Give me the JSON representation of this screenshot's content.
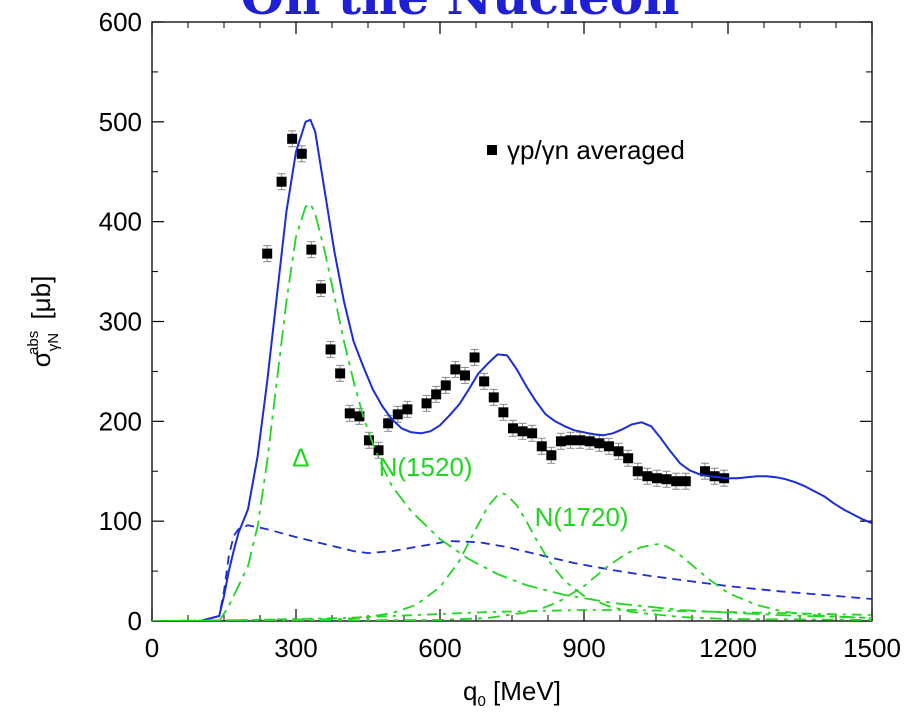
{
  "heading": {
    "text": "On the Nucleon",
    "color": "#1f1fd6"
  },
  "chart_data": {
    "type": "scatter",
    "title": "",
    "xlabel": "q",
    "xlabel_sub": "0",
    "xlabel_unit": "[MeV]",
    "ylabel": "σ",
    "ylabel_sub": "γN",
    "ylabel_sup": "abs",
    "ylabel_unit": "[μb]",
    "xlim": [
      0,
      1500
    ],
    "ylim": [
      0,
      600
    ],
    "xticks": [
      0,
      300,
      600,
      900,
      1200,
      1500
    ],
    "yticks": [
      0,
      100,
      200,
      300,
      400,
      500,
      600
    ],
    "grid": false,
    "legend": {
      "position": "top-right",
      "entries": [
        "γp/γn averaged"
      ]
    },
    "series": [
      {
        "name": "γp/γn averaged",
        "kind": "points",
        "color": "#000000",
        "error": 8,
        "x": [
          240,
          270,
          292,
          312,
          332,
          352,
          372,
          392,
          412,
          432,
          452,
          472,
          492,
          512,
          532,
          572,
          592,
          612,
          632,
          652,
          672,
          692,
          712,
          732,
          752,
          772,
          792,
          812,
          832,
          852,
          872,
          892,
          912,
          932,
          952,
          972,
          992,
          1012,
          1032,
          1052,
          1072,
          1092,
          1112,
          1152,
          1172,
          1192
        ],
        "y": [
          368,
          440,
          483,
          468,
          372,
          333,
          272,
          248,
          208,
          205,
          181,
          171,
          198,
          207,
          212,
          218,
          227,
          236,
          252,
          246,
          264,
          240,
          224,
          209,
          193,
          190,
          188,
          175,
          166,
          180,
          181,
          181,
          180,
          178,
          175,
          170,
          163,
          150,
          145,
          143,
          142,
          140,
          140,
          150,
          145,
          143
        ]
      },
      {
        "name": "",
        "kind": "solid",
        "color": "#1a2dd8",
        "x": [
          0,
          100,
          140,
          150,
          160,
          170,
          180,
          200,
          220,
          240,
          260,
          280,
          300,
          320,
          330,
          340,
          360,
          380,
          400,
          420,
          440,
          460,
          480,
          500,
          520,
          540,
          560,
          580,
          600,
          620,
          640,
          660,
          680,
          700,
          720,
          740,
          760,
          780,
          800,
          820,
          840,
          860,
          880,
          900,
          920,
          940,
          960,
          980,
          1000,
          1020,
          1040,
          1060,
          1080,
          1100,
          1120,
          1140,
          1160,
          1180,
          1200,
          1220,
          1240,
          1260,
          1280,
          1300,
          1320,
          1340,
          1360,
          1380,
          1400,
          1420,
          1440,
          1460,
          1480,
          1500
        ],
        "y": [
          0,
          0,
          5,
          25,
          50,
          70,
          88,
          112,
          165,
          240,
          325,
          410,
          470,
          500,
          502,
          490,
          430,
          370,
          320,
          280,
          255,
          232,
          215,
          202,
          193,
          189,
          188,
          190,
          196,
          206,
          217,
          232,
          248,
          258,
          267,
          266,
          252,
          235,
          220,
          207,
          200,
          195,
          191,
          189,
          187,
          186,
          188,
          192,
          197,
          199,
          195,
          183,
          170,
          158,
          151,
          147,
          145,
          144,
          143,
          143,
          144,
          145,
          145,
          144,
          142,
          139,
          135,
          130,
          125,
          118,
          112,
          107,
          102,
          98
        ]
      },
      {
        "name": "",
        "kind": "dashed",
        "color": "#1a2dd8",
        "x": [
          0,
          100,
          140,
          150,
          160,
          170,
          180,
          200,
          240,
          300,
          360,
          420,
          450,
          500,
          560,
          620,
          680,
          740,
          800,
          880,
          960,
          1040,
          1120,
          1200,
          1300,
          1400,
          1500
        ],
        "y": [
          0,
          0,
          5,
          30,
          65,
          85,
          92,
          96,
          92,
          84,
          77,
          70,
          68,
          70,
          75,
          80,
          79,
          74,
          67,
          58,
          51,
          45,
          40,
          35,
          30,
          26,
          22
        ]
      },
      {
        "name": "",
        "kind": "dashdot-large",
        "color": "#22d622",
        "label": "Δ",
        "x": [
          0,
          140,
          160,
          180,
          200,
          220,
          240,
          260,
          280,
          300,
          320,
          330,
          340,
          360,
          380,
          400,
          420,
          440,
          460,
          480,
          500,
          540,
          600,
          660,
          720,
          780,
          860,
          960,
          1100,
          1300,
          1500
        ],
        "y": [
          0,
          0,
          15,
          35,
          55,
          95,
          160,
          240,
          320,
          385,
          415,
          418,
          408,
          370,
          325,
          280,
          240,
          205,
          178,
          155,
          135,
          110,
          82,
          62,
          47,
          36,
          26,
          18,
          11,
          6,
          3
        ]
      },
      {
        "name": "",
        "kind": "dashdot",
        "color": "#22d622",
        "label": "N(1520)",
        "x": [
          0,
          400,
          450,
          500,
          550,
          600,
          640,
          670,
          700,
          720,
          730,
          740,
          760,
          780,
          800,
          830,
          860,
          900,
          950,
          1000,
          1100,
          1200,
          1500
        ],
        "y": [
          0,
          2,
          4,
          8,
          16,
          34,
          60,
          88,
          115,
          126,
          128,
          126,
          116,
          100,
          82,
          58,
          40,
          25,
          15,
          9,
          4,
          2,
          1
        ]
      },
      {
        "name": "",
        "kind": "dashdot",
        "color": "#22d622",
        "label": "N(1720)",
        "x": [
          0,
          600,
          700,
          800,
          850,
          900,
          950,
          990,
          1020,
          1040,
          1055,
          1070,
          1090,
          1120,
          1160,
          1200,
          1260,
          1320,
          1400,
          1500
        ],
        "y": [
          0,
          1,
          3,
          10,
          20,
          35,
          55,
          68,
          74,
          76,
          77,
          75,
          70,
          58,
          42,
          28,
          16,
          9,
          5,
          3
        ]
      },
      {
        "name": "",
        "kind": "dashdot-small",
        "color": "#22d622",
        "x": [
          0,
          200,
          300,
          400,
          500,
          600,
          700,
          800,
          900,
          1000,
          1100,
          1200,
          1300,
          1400,
          1500
        ],
        "y": [
          0,
          1,
          2,
          3,
          5,
          7,
          9,
          10,
          11,
          11,
          10,
          9,
          8,
          7,
          6
        ]
      }
    ],
    "annotations": [
      {
        "text": "Δ",
        "x": 310,
        "y": 155,
        "color": "#22d622"
      },
      {
        "text": "N(1520)",
        "x": 570,
        "y": 145,
        "color": "#22d622"
      },
      {
        "text": "N(1720)",
        "x": 895,
        "y": 95,
        "color": "#22d622"
      }
    ]
  }
}
